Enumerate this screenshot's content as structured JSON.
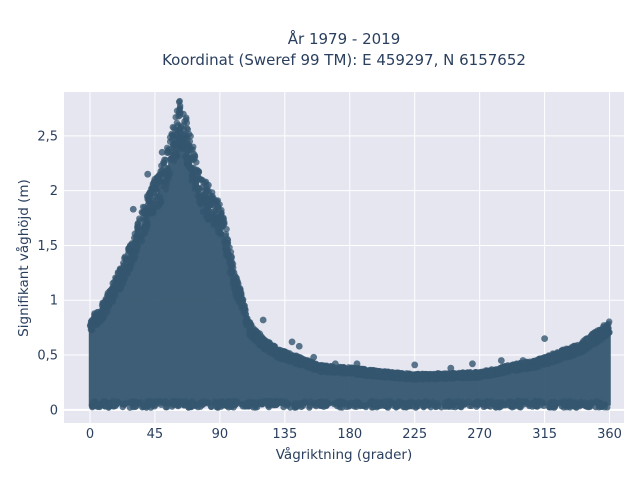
{
  "chart_data": {
    "type": "scatter",
    "title_lines": [
      "År 1979 - 2019",
      "Koordinat (Sweref 99 TM): E 459297, N 6157652"
    ],
    "xlabel": "Vågriktning (grader)",
    "ylabel": "Signifikant våghöjd (m)",
    "xlim": [
      -18,
      370
    ],
    "ylim": [
      -0.12,
      2.9
    ],
    "x_ticks": [
      0,
      45,
      90,
      135,
      180,
      225,
      270,
      315,
      360
    ],
    "x_tick_labels": [
      "0",
      "45",
      "90",
      "135",
      "180",
      "225",
      "270",
      "315",
      "360"
    ],
    "y_ticks": [
      0,
      0.5,
      1,
      1.5,
      2,
      2.5
    ],
    "y_tick_labels": [
      "0",
      "0,5",
      "1",
      "1,5",
      "2",
      "2,5"
    ],
    "grid": true,
    "marker_color": "#34566f",
    "plot_background": "#e5e6f0",
    "series": [
      {
        "note_envelope": "upper envelope of dense point cloud (direction, max height)",
        "envelope": [
          [
            0,
            0.82
          ],
          [
            10,
            0.98
          ],
          [
            20,
            1.25
          ],
          [
            30,
            1.55
          ],
          [
            40,
            1.95
          ],
          [
            50,
            2.2
          ],
          [
            55,
            2.45
          ],
          [
            60,
            2.65
          ],
          [
            62,
            2.82
          ],
          [
            65,
            2.7
          ],
          [
            70,
            2.45
          ],
          [
            75,
            2.15
          ],
          [
            80,
            2.05
          ],
          [
            85,
            1.95
          ],
          [
            90,
            1.85
          ],
          [
            95,
            1.6
          ],
          [
            100,
            1.25
          ],
          [
            105,
            1.05
          ],
          [
            110,
            0.8
          ],
          [
            120,
            0.65
          ],
          [
            130,
            0.55
          ],
          [
            140,
            0.5
          ],
          [
            150,
            0.45
          ],
          [
            160,
            0.4
          ],
          [
            180,
            0.38
          ],
          [
            200,
            0.35
          ],
          [
            225,
            0.32
          ],
          [
            250,
            0.33
          ],
          [
            270,
            0.34
          ],
          [
            290,
            0.4
          ],
          [
            310,
            0.45
          ],
          [
            320,
            0.5
          ],
          [
            330,
            0.55
          ],
          [
            340,
            0.6
          ],
          [
            350,
            0.7
          ],
          [
            360,
            0.8
          ]
        ],
        "outliers": [
          [
            28,
            1.5
          ],
          [
            30,
            1.83
          ],
          [
            35,
            1.62
          ],
          [
            40,
            2.15
          ],
          [
            50,
            2.35
          ],
          [
            78,
            2.03
          ],
          [
            82,
            2.05
          ],
          [
            95,
            1.5
          ],
          [
            120,
            0.82
          ],
          [
            140,
            0.62
          ],
          [
            145,
            0.58
          ],
          [
            155,
            0.48
          ],
          [
            170,
            0.42
          ],
          [
            185,
            0.42
          ],
          [
            200,
            0.35
          ],
          [
            225,
            0.41
          ],
          [
            250,
            0.38
          ],
          [
            265,
            0.42
          ],
          [
            285,
            0.45
          ],
          [
            300,
            0.45
          ],
          [
            315,
            0.65
          ],
          [
            320,
            0.45
          ],
          [
            345,
            0.65
          ]
        ]
      }
    ]
  }
}
